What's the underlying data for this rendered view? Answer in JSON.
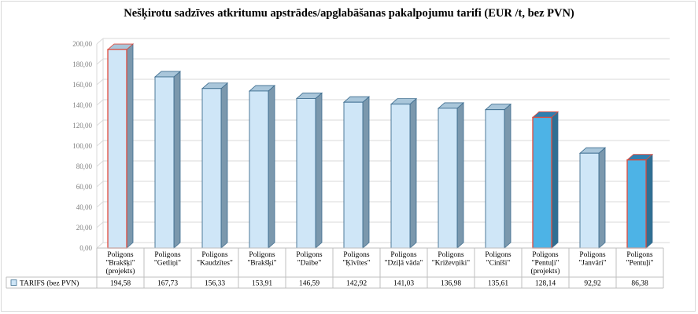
{
  "chart_data": {
    "type": "bar",
    "title": "Nešķirotu sadzīves atkritumu apstrādes/apglabāšanas pakalpojumu tarifi (EUR /t, bez PVN)",
    "xlabel": "",
    "ylabel": "",
    "ylim": [
      0,
      200
    ],
    "ytick_labels": [
      "0,00",
      "20,00",
      "40,00",
      "60,00",
      "80,00",
      "100,00",
      "120,00",
      "140,00",
      "160,00",
      "180,00",
      "200,00"
    ],
    "categories": [
      [
        "Poligons",
        "\"Brakšķi\"",
        "(projekts)"
      ],
      [
        "Poligons",
        "\"Getliņi\""
      ],
      [
        "Poligons",
        "\"Kaudzītes\""
      ],
      [
        "Poligons",
        "\"Brakšķi\""
      ],
      [
        "Poligons",
        "\"Daibe\""
      ],
      [
        "Poligons",
        "\"Ķīvītes\""
      ],
      [
        "Poligons",
        "\"Dziļā vāda\""
      ],
      [
        "Poligons",
        "\"Križevņiki\""
      ],
      [
        "Poligons",
        "\"Cinīši\""
      ],
      [
        "Poligons",
        "\"Pentuļi\"",
        "(projekts)"
      ],
      [
        "Poligons",
        "\"Janvāri\""
      ],
      [
        "Poligons",
        "\"Pentuļi\""
      ]
    ],
    "series": [
      {
        "name": "TARIFS (bez PVN)",
        "values": [
          194.58,
          167.73,
          156.33,
          153.91,
          146.59,
          142.92,
          141.03,
          136.98,
          135.61,
          128.14,
          92.92,
          86.38
        ],
        "value_labels": [
          "194,58",
          "167,73",
          "156,33",
          "153,91",
          "146,59",
          "142,92",
          "141,03",
          "136,98",
          "135,61",
          "128,14",
          "92,92",
          "86,38"
        ]
      }
    ],
    "data_table": true,
    "grid": true,
    "legend": "data-table-left",
    "colors": {
      "bar_fill": "#cfe6f7",
      "bar_fill_highlight": "#4db3e6",
      "bar_side": "#7b98ad",
      "bar_side_highlight": "#2f6f93",
      "bar_top": "#a9c6da",
      "bar_top_highlight": "#2f7fb0",
      "outline": "#3d6d8f",
      "outline_highlight": "#e04a3c",
      "grid": "#d9d9d9",
      "axis_text": "#7f7f7f"
    },
    "highlight_fill": [
      false,
      false,
      false,
      false,
      false,
      false,
      false,
      false,
      false,
      true,
      false,
      true
    ],
    "highlight_outline": [
      true,
      false,
      false,
      false,
      false,
      false,
      false,
      false,
      false,
      true,
      false,
      true
    ]
  }
}
